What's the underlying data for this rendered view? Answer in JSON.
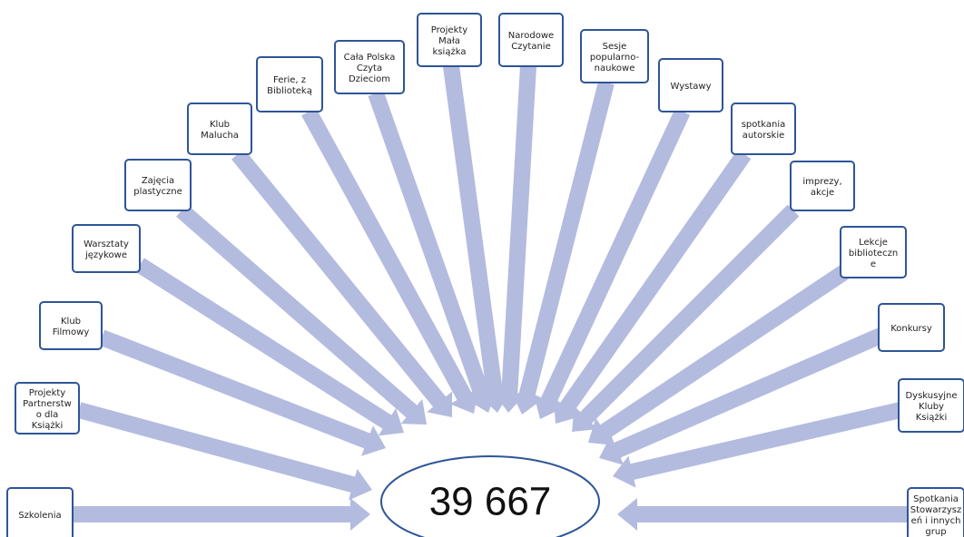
{
  "center": {
    "value": "39 667"
  },
  "nodes": [
    {
      "lines": [
        "Szkolenia"
      ]
    },
    {
      "lines": [
        "Projekty",
        "Partnerstw",
        "o dla",
        "Książki"
      ]
    },
    {
      "lines": [
        "Klub",
        "Filmowy"
      ]
    },
    {
      "lines": [
        "Warsztaty",
        "językowe"
      ]
    },
    {
      "lines": [
        "Zajęcia",
        "plastyczne"
      ]
    },
    {
      "lines": [
        "Klub",
        "Malucha"
      ]
    },
    {
      "lines": [
        "Ferie,  z",
        "Biblioteką"
      ]
    },
    {
      "lines": [
        "Cała Polska",
        "Czyta",
        "Dzieciom"
      ]
    },
    {
      "lines": [
        "Projekty",
        "Mała",
        "książka"
      ]
    },
    {
      "lines": [
        "Narodowe",
        "Czytanie"
      ]
    },
    {
      "lines": [
        "Sesje",
        "popularno-",
        "naukowe"
      ]
    },
    {
      "lines": [
        "Wystawy"
      ]
    },
    {
      "lines": [
        "spotkania",
        "autorskie"
      ]
    },
    {
      "lines": [
        "imprezy,",
        "akcje"
      ]
    },
    {
      "lines": [
        "Lekcje",
        "biblioteczn",
        "e"
      ]
    },
    {
      "lines": [
        "Konkursy"
      ]
    },
    {
      "lines": [
        "Dyskusyjne",
        "Kluby",
        "Książki"
      ]
    },
    {
      "lines": [
        "Spotkania",
        "Stowarzysz",
        "eń  i innych",
        "grup"
      ]
    }
  ]
}
